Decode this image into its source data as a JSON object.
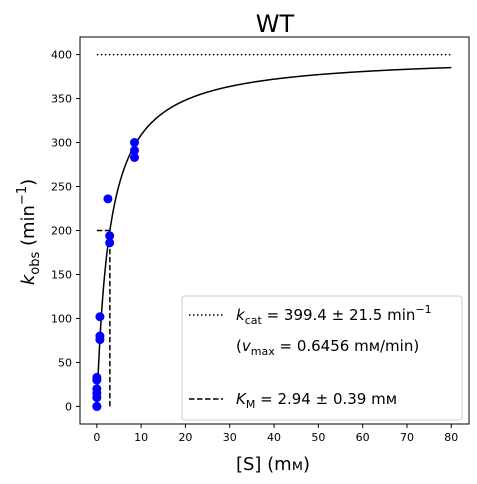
{
  "chart_data": {
    "type": "scatter",
    "title": "WT",
    "xlabel": "[S] (mм)",
    "ylabel": "k_obs (min⁻¹)",
    "xlim": [
      -3.8,
      84
    ],
    "ylim": [
      -20,
      420
    ],
    "xticks": [
      0,
      10,
      20,
      30,
      40,
      50,
      60,
      70,
      80
    ],
    "yticks": [
      0,
      50,
      100,
      150,
      200,
      250,
      300,
      350,
      400
    ],
    "grid": false,
    "legend_position": "lower right",
    "series": [
      {
        "kind": "points",
        "color": "#0000ff",
        "x": [
          0,
          0,
          0,
          0,
          0,
          0,
          0,
          0.7,
          0.7,
          0.7,
          2.5,
          2.9,
          2.9,
          8.5,
          8.5,
          8.5
        ],
        "y": [
          0,
          10,
          15,
          20,
          30,
          33,
          0,
          76,
          80,
          102,
          236,
          186,
          194,
          283,
          291,
          300
        ]
      },
      {
        "kind": "fit-curve",
        "color": "#000000",
        "model": "michaelis-menten",
        "kcat": 399.4,
        "km": 2.94,
        "x_range": [
          0,
          80
        ]
      },
      {
        "kind": "kcat-line",
        "color": "#000000",
        "x": [
          0,
          80
        ],
        "y": [
          400,
          400
        ]
      },
      {
        "kind": "km-marker",
        "color": "#000000",
        "horizontal": {
          "x": [
            0,
            2.94
          ],
          "y": 200
        },
        "vertical": {
          "x": 2.94,
          "y": [
            0,
            200
          ]
        }
      }
    ],
    "legend": {
      "entries": [
        {
          "style": "dotted",
          "label": "k_cat = 399.4 ± 21.5 min⁻¹",
          "sublabel": "(v_max = 0.6456 mм/min)"
        },
        {
          "style": "dashed",
          "label": "K_M = 2.94 ± 0.39 mм"
        }
      ]
    }
  },
  "text": {
    "title": "WT",
    "xlabel_main": "[S] (m",
    "xlabel_unit": "м",
    "xlabel_close": ")",
    "ylabel_k": "k",
    "ylabel_sub": "obs",
    "ylabel_rest": " (min",
    "ylabel_sup": "−1",
    "ylabel_close": ")",
    "legend_kcat_k": "k",
    "legend_kcat_sub": "cat",
    "legend_kcat_value": " = 399.4 ± 21.5 min",
    "legend_kcat_sup": "−1",
    "legend_vmax_open": "(",
    "legend_vmax_v": "v",
    "legend_vmax_sub": "max",
    "legend_vmax_value": " = 0.6456 mм/min)",
    "legend_km_k": "K",
    "legend_km_sub": "M",
    "legend_km_value": " = 2.94 ± 0.39 mм"
  }
}
